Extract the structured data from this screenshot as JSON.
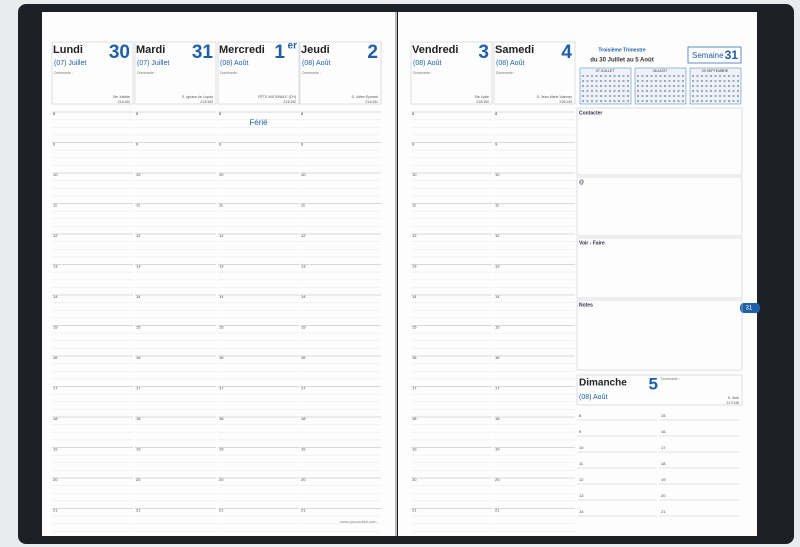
{
  "week": {
    "label": "Semaine",
    "number": "31"
  },
  "quarter": {
    "title": "Troisième Trimestre",
    "range": "du 30 Juillet au 5 Août"
  },
  "dominante": "Dominante :",
  "hours": [
    "8",
    "9",
    "10",
    "11",
    "12",
    "13",
    "14",
    "15",
    "16",
    "17",
    "18",
    "19",
    "20",
    "21"
  ],
  "days": [
    {
      "name": "Lundi",
      "number": "30",
      "month": "(07) Juillet",
      "saint": "Ste Juliette",
      "count": "211/154"
    },
    {
      "name": "Mardi",
      "number": "31",
      "month": "(07) Juillet",
      "saint": "S. Ignace de Loyola",
      "count": "212/153"
    },
    {
      "name": "Mercredi",
      "number": "1",
      "sup": "er",
      "month": "(08) Août",
      "saint": "FÊTE NATIONALE (CH)",
      "count": "213/152",
      "note": "Férié"
    },
    {
      "name": "Jeudi",
      "number": "2",
      "month": "(08) Août",
      "saint": "S. Julien Eymard",
      "count": "214/151"
    },
    {
      "name": "Vendredi",
      "number": "3",
      "month": "(08) Août",
      "saint": "Ste Lydie",
      "count": "215/150"
    },
    {
      "name": "Samedi",
      "number": "4",
      "month": "(08) Août",
      "saint": "S. Jean-Marie Vianney",
      "count": "216/149"
    }
  ],
  "sunday": {
    "name": "Dimanche",
    "number": "5",
    "month": "(08) Août",
    "saint": "S. Abel",
    "count": "217/148"
  },
  "mini_calendars": [
    "07 JUILLET",
    "08 AOÛT",
    "09 SEPTEMBRE"
  ],
  "sections": [
    "Contacter",
    "@",
    "Voir - Faire",
    "Notes"
  ],
  "tab": "31",
  "footer": "www.quovadisfr.com"
}
